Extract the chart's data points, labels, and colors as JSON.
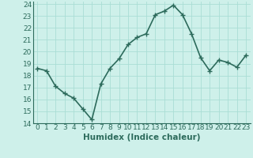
{
  "x": [
    0,
    1,
    2,
    3,
    4,
    5,
    6,
    7,
    8,
    9,
    10,
    11,
    12,
    13,
    14,
    15,
    16,
    17,
    18,
    19,
    20,
    21,
    22,
    23
  ],
  "y": [
    18.6,
    18.4,
    17.1,
    16.5,
    16.1,
    15.2,
    14.3,
    17.3,
    18.6,
    19.4,
    20.6,
    21.2,
    21.5,
    23.1,
    23.4,
    23.9,
    23.1,
    21.5,
    19.5,
    18.4,
    19.3,
    19.1,
    18.7,
    19.7
  ],
  "xlabel": "Humidex (Indice chaleur)",
  "xlim": [
    -0.5,
    23.5
  ],
  "ylim": [
    14,
    24.2
  ],
  "yticks": [
    14,
    15,
    16,
    17,
    18,
    19,
    20,
    21,
    22,
    23,
    24
  ],
  "xticks": [
    0,
    1,
    2,
    3,
    4,
    5,
    6,
    7,
    8,
    9,
    10,
    11,
    12,
    13,
    14,
    15,
    16,
    17,
    18,
    19,
    20,
    21,
    22,
    23
  ],
  "line_color": "#2d6b5c",
  "bg_color": "#cef0ea",
  "grid_color": "#aaddd5",
  "xlabel_fontsize": 7.5,
  "tick_fontsize": 6.5,
  "line_width": 1.2,
  "marker_size": 2.5
}
